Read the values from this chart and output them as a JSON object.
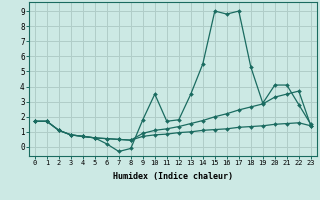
{
  "xlabel": "Humidex (Indice chaleur)",
  "background_color": "#cce9e4",
  "grid_color": "#b0cdc8",
  "line_color": "#1a6b60",
  "xlim": [
    -0.5,
    23.5
  ],
  "ylim": [
    -0.6,
    9.6
  ],
  "xticks": [
    0,
    1,
    2,
    3,
    4,
    5,
    6,
    7,
    8,
    9,
    10,
    11,
    12,
    13,
    14,
    15,
    16,
    17,
    18,
    19,
    20,
    21,
    22,
    23
  ],
  "yticks": [
    0,
    1,
    2,
    3,
    4,
    5,
    6,
    7,
    8,
    9
  ],
  "series": [
    [
      1.7,
      1.7,
      1.1,
      0.8,
      0.7,
      0.6,
      0.2,
      -0.3,
      -0.1,
      1.8,
      3.5,
      1.7,
      1.8,
      3.5,
      5.5,
      9.0,
      8.8,
      9.0,
      5.3,
      2.9,
      4.1,
      4.1,
      2.8,
      1.5
    ],
    [
      1.7,
      1.7,
      1.1,
      0.8,
      0.7,
      0.6,
      0.55,
      0.5,
      0.45,
      0.9,
      1.1,
      1.2,
      1.35,
      1.55,
      1.75,
      2.0,
      2.2,
      2.45,
      2.65,
      2.85,
      3.3,
      3.5,
      3.7,
      1.4
    ],
    [
      1.7,
      1.7,
      1.1,
      0.8,
      0.7,
      0.6,
      0.55,
      0.5,
      0.45,
      0.7,
      0.8,
      0.85,
      0.95,
      1.0,
      1.1,
      1.15,
      1.2,
      1.3,
      1.35,
      1.4,
      1.5,
      1.55,
      1.6,
      1.4
    ]
  ]
}
